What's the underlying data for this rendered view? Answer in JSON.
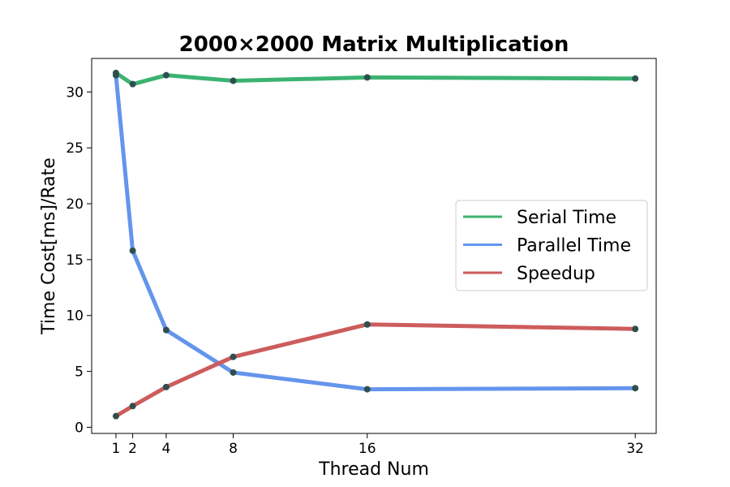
{
  "chart_data": {
    "type": "line",
    "title": "2000×2000 Matrix Multiplication",
    "xlabel": "Thread Num",
    "ylabel": "Time Cost[ms]/Rate",
    "x": [
      1,
      2,
      4,
      8,
      16,
      32
    ],
    "xticks": [
      "1",
      "2",
      "4",
      "8",
      "16",
      "32"
    ],
    "yticks": [
      "0",
      "5",
      "10",
      "15",
      "20",
      "25",
      "30"
    ],
    "xlim": [
      -0.45,
      33.25
    ],
    "ylim": [
      -0.55,
      33.0
    ],
    "series": [
      {
        "name": "Serial Time",
        "color": "#3cb371",
        "values": [
          31.7,
          30.7,
          31.5,
          31.0,
          31.3,
          31.2
        ]
      },
      {
        "name": "Parallel Time",
        "color": "#6495ed",
        "values": [
          31.5,
          15.8,
          8.7,
          4.9,
          3.4,
          3.5
        ]
      },
      {
        "name": "Speedup",
        "color": "#cd5c5c",
        "values": [
          1.0,
          1.9,
          3.6,
          6.3,
          9.2,
          8.8
        ]
      }
    ],
    "marker_color": "#2f4f4f",
    "legend_position": "center-right",
    "grid": false
  }
}
